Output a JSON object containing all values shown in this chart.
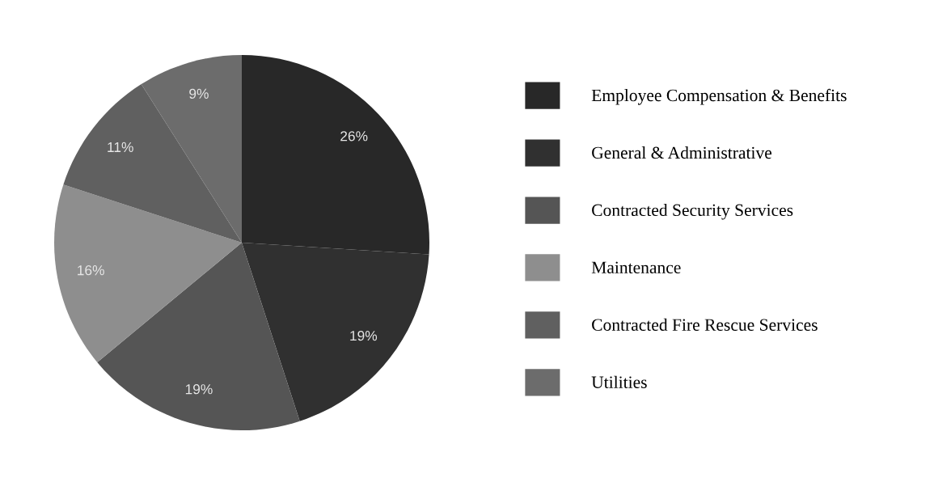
{
  "chart_data": {
    "type": "pie",
    "categories": [
      "Employee Compensation & Benefits",
      "General & Administrative",
      "Contracted Security Services",
      "Maintenance",
      "Contracted Fire Rescue Services",
      "Utilities"
    ],
    "values": [
      26,
      19,
      19,
      16,
      11,
      9
    ],
    "value_labels": [
      "26%",
      "19%",
      "19%",
      "16%",
      "11%",
      "9%"
    ],
    "colors": [
      "#282828",
      "#303030",
      "#555555",
      "#8e8e8e",
      "#606060",
      "#6c6c6c"
    ],
    "legend": "right"
  }
}
